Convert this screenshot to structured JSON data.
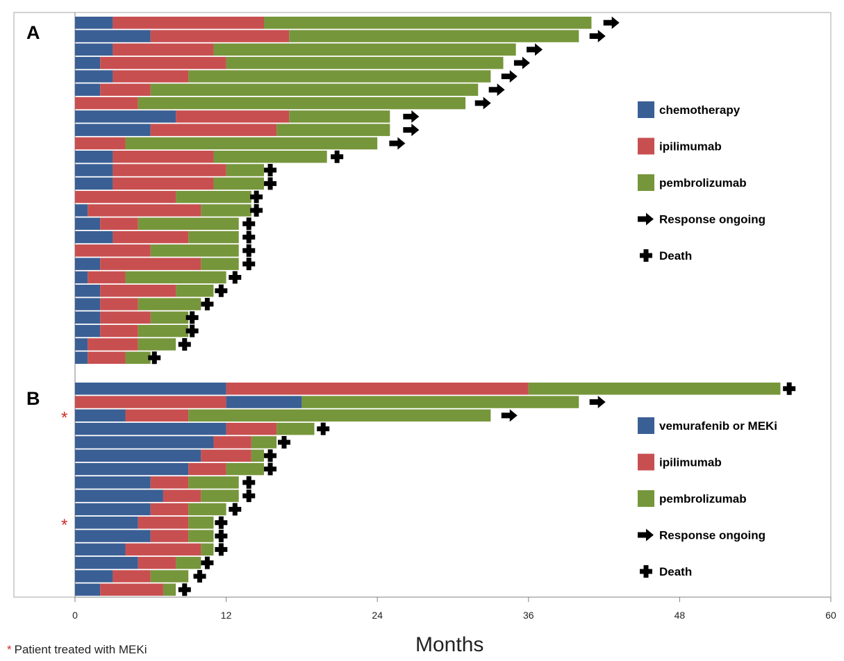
{
  "colors": {
    "chemotherapy": "#3a5f94",
    "vemurafenib": "#3a5f94",
    "ipilimumab": "#c84f50",
    "pembrolizumab": "#76963b",
    "frame": "#a6a6a6"
  },
  "footnote": {
    "star": "*",
    "text": "Patient treated with MEKi"
  },
  "chart_data": [
    {
      "type": "bar",
      "orientation": "horizontal-stacked",
      "panel": "A",
      "xlabel": "Months",
      "xlim": [
        0,
        60
      ],
      "xticks": [
        0,
        12,
        24,
        36,
        48,
        60
      ],
      "legend": [
        {
          "key": "chemotherapy",
          "label": "chemotherapy",
          "marker": "swatch"
        },
        {
          "key": "ipilimumab",
          "label": "ipilimumab",
          "marker": "swatch"
        },
        {
          "key": "pembrolizumab",
          "label": "pembrolizumab",
          "marker": "swatch"
        },
        {
          "key": "ongoing",
          "label": "Response ongoing",
          "marker": "arrow"
        },
        {
          "key": "death",
          "label": "Death",
          "marker": "cross"
        }
      ],
      "legend_position": "right",
      "patients": [
        {
          "segments": [
            [
              "chemotherapy",
              0,
              3
            ],
            [
              "ipilimumab",
              3,
              15
            ],
            [
              "pembrolizumab",
              15,
              41
            ]
          ],
          "outcome": "ongoing",
          "outcome_at": 42.5
        },
        {
          "segments": [
            [
              "chemotherapy",
              0,
              6
            ],
            [
              "ipilimumab",
              6,
              17
            ],
            [
              "pembrolizumab",
              17,
              40
            ]
          ],
          "outcome": "ongoing",
          "outcome_at": 41.4
        },
        {
          "segments": [
            [
              "chemotherapy",
              0,
              3
            ],
            [
              "ipilimumab",
              3,
              11
            ],
            [
              "pembrolizumab",
              11,
              35
            ]
          ],
          "outcome": "ongoing",
          "outcome_at": 36.4
        },
        {
          "segments": [
            [
              "chemotherapy",
              0,
              2
            ],
            [
              "ipilimumab",
              2,
              12
            ],
            [
              "pembrolizumab",
              12,
              34
            ]
          ],
          "outcome": "ongoing",
          "outcome_at": 35.4
        },
        {
          "segments": [
            [
              "chemotherapy",
              0,
              3
            ],
            [
              "ipilimumab",
              3,
              9
            ],
            [
              "pembrolizumab",
              9,
              33
            ]
          ],
          "outcome": "ongoing",
          "outcome_at": 34.4
        },
        {
          "segments": [
            [
              "chemotherapy",
              0,
              2
            ],
            [
              "ipilimumab",
              2,
              6
            ],
            [
              "pembrolizumab",
              6,
              32
            ]
          ],
          "outcome": "ongoing",
          "outcome_at": 33.4
        },
        {
          "segments": [
            [
              "ipilimumab",
              0,
              5
            ],
            [
              "pembrolizumab",
              5,
              31
            ]
          ],
          "outcome": "ongoing",
          "outcome_at": 32.3
        },
        {
          "segments": [
            [
              "chemotherapy",
              0,
              8
            ],
            [
              "ipilimumab",
              8,
              17
            ],
            [
              "pembrolizumab",
              17,
              25
            ]
          ],
          "outcome": "ongoing",
          "outcome_at": 26.6
        },
        {
          "segments": [
            [
              "chemotherapy",
              0,
              6
            ],
            [
              "ipilimumab",
              6,
              16
            ],
            [
              "pembrolizumab",
              16,
              25
            ]
          ],
          "outcome": "ongoing",
          "outcome_at": 26.6
        },
        {
          "segments": [
            [
              "ipilimumab",
              0,
              4
            ],
            [
              "pembrolizumab",
              4,
              24
            ]
          ],
          "outcome": "ongoing",
          "outcome_at": 25.5
        },
        {
          "segments": [
            [
              "chemotherapy",
              0,
              3
            ],
            [
              "ipilimumab",
              3,
              11
            ],
            [
              "pembrolizumab",
              11,
              20
            ]
          ],
          "outcome": "death",
          "outcome_at": 20.8
        },
        {
          "segments": [
            [
              "chemotherapy",
              0,
              3
            ],
            [
              "ipilimumab",
              3,
              12
            ],
            [
              "pembrolizumab",
              12,
              15
            ]
          ],
          "outcome": "death",
          "outcome_at": 15.5
        },
        {
          "segments": [
            [
              "chemotherapy",
              0,
              3
            ],
            [
              "ipilimumab",
              3,
              11
            ],
            [
              "pembrolizumab",
              11,
              15
            ]
          ],
          "outcome": "death",
          "outcome_at": 15.5
        },
        {
          "segments": [
            [
              "ipilimumab",
              0,
              8
            ],
            [
              "pembrolizumab",
              8,
              14
            ]
          ],
          "outcome": "death",
          "outcome_at": 14.4
        },
        {
          "segments": [
            [
              "chemotherapy",
              0,
              1
            ],
            [
              "ipilimumab",
              1,
              10
            ],
            [
              "pembrolizumab",
              10,
              14
            ]
          ],
          "outcome": "death",
          "outcome_at": 14.4
        },
        {
          "segments": [
            [
              "chemotherapy",
              0,
              2
            ],
            [
              "ipilimumab",
              2,
              5
            ],
            [
              "pembrolizumab",
              5,
              13
            ]
          ],
          "outcome": "death",
          "outcome_at": 13.8
        },
        {
          "segments": [
            [
              "chemotherapy",
              0,
              3
            ],
            [
              "ipilimumab",
              3,
              9
            ],
            [
              "pembrolizumab",
              9,
              13
            ]
          ],
          "outcome": "death",
          "outcome_at": 13.8
        },
        {
          "segments": [
            [
              "ipilimumab",
              0,
              6
            ],
            [
              "pembrolizumab",
              6,
              13
            ]
          ],
          "outcome": "death",
          "outcome_at": 13.8
        },
        {
          "segments": [
            [
              "chemotherapy",
              0,
              2
            ],
            [
              "ipilimumab",
              2,
              10
            ],
            [
              "pembrolizumab",
              10,
              13
            ]
          ],
          "outcome": "death",
          "outcome_at": 13.8
        },
        {
          "segments": [
            [
              "chemotherapy",
              0,
              1
            ],
            [
              "ipilimumab",
              1,
              4
            ],
            [
              "pembrolizumab",
              4,
              12
            ]
          ],
          "outcome": "death",
          "outcome_at": 12.7
        },
        {
          "segments": [
            [
              "chemotherapy",
              0,
              2
            ],
            [
              "ipilimumab",
              2,
              8
            ],
            [
              "pembrolizumab",
              8,
              11
            ]
          ],
          "outcome": "death",
          "outcome_at": 11.6
        },
        {
          "segments": [
            [
              "chemotherapy",
              0,
              2
            ],
            [
              "ipilimumab",
              2,
              5
            ],
            [
              "pembrolizumab",
              5,
              10
            ]
          ],
          "outcome": "death",
          "outcome_at": 10.5
        },
        {
          "segments": [
            [
              "chemotherapy",
              0,
              2
            ],
            [
              "ipilimumab",
              2,
              6
            ],
            [
              "pembrolizumab",
              6,
              9
            ]
          ],
          "outcome": "death",
          "outcome_at": 9.3
        },
        {
          "segments": [
            [
              "chemotherapy",
              0,
              2
            ],
            [
              "ipilimumab",
              2,
              5
            ],
            [
              "pembrolizumab",
              5,
              9
            ]
          ],
          "outcome": "death",
          "outcome_at": 9.3
        },
        {
          "segments": [
            [
              "chemotherapy",
              0,
              1
            ],
            [
              "ipilimumab",
              1,
              5
            ],
            [
              "pembrolizumab",
              5,
              8
            ]
          ],
          "outcome": "death",
          "outcome_at": 8.7
        },
        {
          "segments": [
            [
              "chemotherapy",
              0,
              1
            ],
            [
              "ipilimumab",
              1,
              4
            ],
            [
              "pembrolizumab",
              4,
              6
            ]
          ],
          "outcome": "death",
          "outcome_at": 6.3
        }
      ]
    },
    {
      "type": "bar",
      "orientation": "horizontal-stacked",
      "panel": "B",
      "xlabel": "Months",
      "xlim": [
        0,
        60
      ],
      "xticks": [
        0,
        12,
        24,
        36,
        48,
        60
      ],
      "legend": [
        {
          "key": "vemurafenib",
          "label": "vemurafenib or MEKi",
          "marker": "swatch"
        },
        {
          "key": "ipilimumab",
          "label": "ipilimumab",
          "marker": "swatch"
        },
        {
          "key": "pembrolizumab",
          "label": "pembrolizumab",
          "marker": "swatch"
        },
        {
          "key": "ongoing",
          "label": "Response ongoing",
          "marker": "arrow"
        },
        {
          "key": "death",
          "label": "Death",
          "marker": "cross"
        }
      ],
      "legend_position": "right",
      "patients": [
        {
          "segments": [
            [
              "vemurafenib",
              0,
              12
            ],
            [
              "ipilimumab",
              12,
              36
            ],
            [
              "pembrolizumab",
              36,
              56
            ]
          ],
          "outcome": "death",
          "outcome_at": 56.7
        },
        {
          "segments": [
            [
              "ipilimumab",
              0,
              12
            ],
            [
              "vemurafenib",
              12,
              18
            ],
            [
              "pembrolizumab",
              18,
              40
            ]
          ],
          "outcome": "ongoing",
          "outcome_at": 41.4
        },
        {
          "segments": [
            [
              "vemurafenib",
              0,
              4
            ],
            [
              "ipilimumab",
              4,
              9
            ],
            [
              "pembrolizumab",
              9,
              33
            ]
          ],
          "outcome": "ongoing",
          "outcome_at": 34.4,
          "meki": true
        },
        {
          "segments": [
            [
              "vemurafenib",
              0,
              12
            ],
            [
              "ipilimumab",
              12,
              16
            ],
            [
              "pembrolizumab",
              16,
              19
            ]
          ],
          "outcome": "death",
          "outcome_at": 19.7
        },
        {
          "segments": [
            [
              "vemurafenib",
              0,
              11
            ],
            [
              "ipilimumab",
              11,
              14
            ],
            [
              "pembrolizumab",
              14,
              16
            ]
          ],
          "outcome": "death",
          "outcome_at": 16.6
        },
        {
          "segments": [
            [
              "vemurafenib",
              0,
              10
            ],
            [
              "ipilimumab",
              10,
              14
            ],
            [
              "pembrolizumab",
              14,
              15
            ]
          ],
          "outcome": "death",
          "outcome_at": 15.5
        },
        {
          "segments": [
            [
              "vemurafenib",
              0,
              9
            ],
            [
              "ipilimumab",
              9,
              12
            ],
            [
              "pembrolizumab",
              12,
              15
            ]
          ],
          "outcome": "death",
          "outcome_at": 15.5
        },
        {
          "segments": [
            [
              "vemurafenib",
              0,
              6
            ],
            [
              "ipilimumab",
              6,
              9
            ],
            [
              "pembrolizumab",
              9,
              13
            ]
          ],
          "outcome": "death",
          "outcome_at": 13.8
        },
        {
          "segments": [
            [
              "vemurafenib",
              0,
              7
            ],
            [
              "ipilimumab",
              7,
              10
            ],
            [
              "pembrolizumab",
              10,
              13
            ]
          ],
          "outcome": "death",
          "outcome_at": 13.8
        },
        {
          "segments": [
            [
              "vemurafenib",
              0,
              6
            ],
            [
              "ipilimumab",
              6,
              9
            ],
            [
              "pembrolizumab",
              9,
              12
            ]
          ],
          "outcome": "death",
          "outcome_at": 12.7
        },
        {
          "segments": [
            [
              "vemurafenib",
              0,
              5
            ],
            [
              "ipilimumab",
              5,
              9
            ],
            [
              "pembrolizumab",
              9,
              11
            ]
          ],
          "outcome": "death",
          "outcome_at": 11.6,
          "meki": true
        },
        {
          "segments": [
            [
              "vemurafenib",
              0,
              6
            ],
            [
              "ipilimumab",
              6,
              9
            ],
            [
              "pembrolizumab",
              9,
              11
            ]
          ],
          "outcome": "death",
          "outcome_at": 11.6
        },
        {
          "segments": [
            [
              "vemurafenib",
              0,
              4
            ],
            [
              "ipilimumab",
              4,
              10
            ],
            [
              "pembrolizumab",
              10,
              11
            ]
          ],
          "outcome": "death",
          "outcome_at": 11.6
        },
        {
          "segments": [
            [
              "vemurafenib",
              0,
              5
            ],
            [
              "ipilimumab",
              5,
              8
            ],
            [
              "pembrolizumab",
              8,
              10
            ]
          ],
          "outcome": "death",
          "outcome_at": 10.5
        },
        {
          "segments": [
            [
              "vemurafenib",
              0,
              3
            ],
            [
              "ipilimumab",
              3,
              6
            ],
            [
              "pembrolizumab",
              6,
              9
            ]
          ],
          "outcome": "death",
          "outcome_at": 9.9
        },
        {
          "segments": [
            [
              "vemurafenib",
              0,
              2
            ],
            [
              "ipilimumab",
              2,
              7
            ],
            [
              "pembrolizumab",
              7,
              8
            ]
          ],
          "outcome": "death",
          "outcome_at": 8.7
        }
      ]
    }
  ]
}
